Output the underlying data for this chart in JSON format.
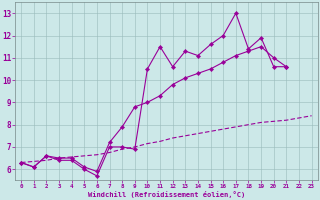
{
  "xlabel": "Windchill (Refroidissement éolien,°C)",
  "bg_color": "#cce8e8",
  "line_color": "#990099",
  "grid_color": "#99bbbb",
  "xlim_min": -0.5,
  "xlim_max": 23.5,
  "ylim_min": 5.5,
  "ylim_max": 13.5,
  "xticks": [
    0,
    1,
    2,
    3,
    4,
    5,
    6,
    7,
    8,
    9,
    10,
    11,
    12,
    13,
    14,
    15,
    16,
    17,
    18,
    19,
    20,
    21,
    22,
    23
  ],
  "yticks": [
    6,
    7,
    8,
    9,
    10,
    11,
    12,
    13
  ],
  "series1_x": [
    0,
    1,
    2,
    3,
    4,
    5,
    6,
    7,
    8,
    9,
    10,
    11,
    12,
    13,
    14,
    15,
    16,
    17,
    18,
    19,
    20,
    21
  ],
  "series1_y": [
    6.3,
    6.1,
    6.6,
    6.4,
    6.4,
    6.0,
    5.7,
    7.0,
    7.0,
    6.9,
    10.5,
    11.5,
    10.6,
    11.3,
    11.1,
    11.6,
    12.0,
    13.0,
    11.4,
    11.9,
    10.6,
    10.6
  ],
  "series2_x": [
    0,
    1,
    2,
    3,
    4,
    5,
    6,
    7,
    8,
    9,
    10,
    11,
    12,
    13,
    14,
    15,
    16,
    17,
    18,
    19,
    20,
    21
  ],
  "series2_y": [
    6.3,
    6.1,
    6.6,
    6.5,
    6.5,
    6.1,
    5.9,
    7.2,
    7.9,
    8.8,
    9.0,
    9.3,
    9.8,
    10.1,
    10.3,
    10.5,
    10.8,
    11.1,
    11.3,
    11.5,
    11.0,
    10.6
  ],
  "series3_x": [
    0,
    1,
    2,
    3,
    4,
    5,
    6,
    7,
    8,
    9,
    10,
    11,
    12,
    13,
    14,
    15,
    16,
    17,
    18,
    19,
    20,
    21,
    22,
    23
  ],
  "series3_y": [
    6.3,
    6.35,
    6.4,
    6.5,
    6.55,
    6.6,
    6.65,
    6.75,
    6.9,
    7.0,
    7.15,
    7.25,
    7.4,
    7.5,
    7.6,
    7.7,
    7.8,
    7.9,
    8.0,
    8.1,
    8.15,
    8.2,
    8.3,
    8.4
  ]
}
